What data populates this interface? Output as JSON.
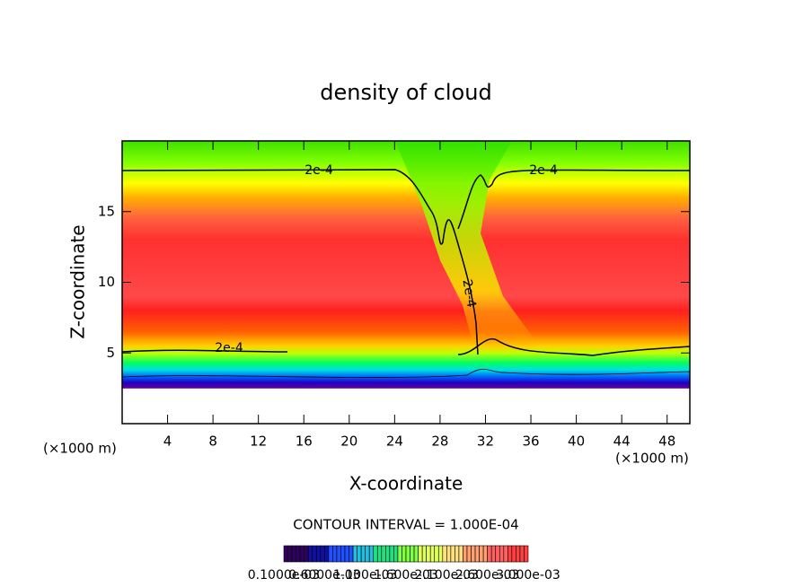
{
  "chart_data": {
    "type": "contour",
    "title": "density of cloud",
    "x_label": "X-coordinate",
    "y_label": "Z-coordinate",
    "x_unit": "(×1000 m)",
    "y_unit": "(×1000 m)",
    "xlim": [
      0,
      50
    ],
    "ylim": [
      0,
      20
    ],
    "xticks": [
      4,
      8,
      12,
      16,
      20,
      24,
      28,
      32,
      36,
      40,
      44,
      48
    ],
    "yticks": [
      5,
      10,
      15
    ],
    "contour_info": "CONTOUR INTERVAL = 1.000E-04",
    "contour_labels": [
      "2e-4",
      "2e-4",
      "2e-4",
      "2e-4"
    ],
    "colorbar_labels": [
      "0.1000e-03",
      "0.6000e-03",
      "1.100e-03",
      "1.600e-03",
      "2.100e-03",
      "2.600e-03",
      "3.000e-03"
    ]
  }
}
